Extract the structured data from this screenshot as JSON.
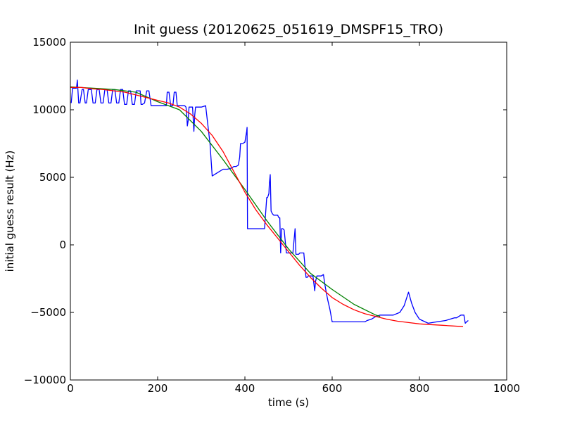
{
  "chart_data": {
    "type": "line",
    "title": "Init guess (20120625_051619_DMSPF15_TRO)",
    "xlabel": "time (s)",
    "ylabel": "initial guess result (Hz)",
    "xlim": [
      0,
      1000
    ],
    "ylim": [
      -10000,
      15000
    ],
    "x_ticks": [
      0,
      200,
      400,
      600,
      800,
      1000
    ],
    "y_ticks": [
      -10000,
      -5000,
      0,
      5000,
      10000,
      15000
    ],
    "x_tick_labels": [
      "0",
      "200",
      "400",
      "600",
      "800",
      "1000"
    ],
    "y_tick_labels": [
      "−10000",
      "−5000",
      "0",
      "5000",
      "10000",
      "15000"
    ],
    "grid": false,
    "legend": "none",
    "series": [
      {
        "color": "#0000ff",
        "x": [
          2,
          5,
          8,
          14,
          16,
          19,
          22,
          27,
          30,
          34,
          37,
          41,
          48,
          52,
          57,
          61,
          66,
          70,
          75,
          79,
          84,
          88,
          93,
          97,
          102,
          106,
          111,
          115,
          120,
          124,
          129,
          133,
          138,
          142,
          147,
          151,
          156,
          160,
          162,
          165,
          170,
          175,
          180,
          185,
          190,
          200,
          215,
          220,
          222,
          226,
          230,
          235,
          238,
          242,
          245,
          250,
          258,
          262,
          265,
          267,
          268,
          270,
          272,
          275,
          280,
          283,
          285,
          287,
          290,
          300,
          310,
          320,
          325,
          330,
          340,
          350,
          360,
          370,
          375,
          380,
          385,
          388,
          390,
          395,
          400,
          402,
          404,
          405,
          406,
          407,
          408,
          410,
          420,
          430,
          440,
          445,
          450,
          452,
          455,
          456,
          458,
          460,
          463,
          466,
          470,
          475,
          478,
          480,
          482,
          484,
          487,
          490,
          495,
          500,
          503,
          505,
          510,
          515,
          517,
          520,
          523,
          526,
          530,
          535,
          540,
          543,
          545,
          550,
          556,
          560,
          562,
          565,
          570,
          575,
          580,
          583,
          587,
          590,
          595,
          600,
          610,
          620,
          640,
          660,
          675,
          680,
          690,
          700,
          710,
          715,
          720,
          730,
          740,
          755,
          765,
          775,
          782,
          790,
          800,
          820,
          840,
          860,
          880,
          885,
          890,
          895,
          902,
          905,
          908,
          912
        ],
        "y": [
          10500,
          11600,
          11600,
          11600,
          12200,
          10500,
          10500,
          11500,
          11500,
          10500,
          10500,
          11500,
          11500,
          10500,
          10500,
          11500,
          11500,
          10500,
          10500,
          11500,
          11500,
          10500,
          10500,
          11500,
          11500,
          10500,
          10500,
          11500,
          11500,
          10400,
          10400,
          11400,
          11400,
          10400,
          10400,
          11400,
          11400,
          11400,
          10400,
          10400,
          10500,
          11400,
          11400,
          10300,
          10300,
          10300,
          10300,
          10300,
          11300,
          11300,
          10300,
          10300,
          11300,
          11300,
          10300,
          10300,
          10300,
          10300,
          10200,
          9500,
          8800,
          9200,
          10200,
          10200,
          10200,
          8400,
          9600,
          10200,
          10200,
          10200,
          10300,
          7500,
          5100,
          5200,
          5400,
          5600,
          5600,
          5700,
          5800,
          5800,
          5900,
          6500,
          7500,
          7500,
          7600,
          8000,
          8400,
          8700,
          1200,
          1200,
          1200,
          1200,
          1200,
          1200,
          1200,
          1200,
          3500,
          3500,
          3800,
          4500,
          5200,
          2500,
          2300,
          2200,
          2200,
          2200,
          2000,
          2000,
          -600,
          1200,
          1200,
          1100,
          -600,
          -600,
          -600,
          -600,
          -600,
          1200,
          -700,
          -700,
          -700,
          -600,
          -600,
          -600,
          -2400,
          -2400,
          -2300,
          -2300,
          -2300,
          -3400,
          -2700,
          -2300,
          -2300,
          -2300,
          -2200,
          -2900,
          -3600,
          -4100,
          -4800,
          -5700,
          -5700,
          -5700,
          -5700,
          -5700,
          -5700,
          -5600,
          -5500,
          -5300,
          -5200,
          -5200,
          -5200,
          -5200,
          -5200,
          -5000,
          -4500,
          -3500,
          -4300,
          -5000,
          -5500,
          -5800,
          -5700,
          -5600,
          -5400,
          -5400,
          -5300,
          -5200,
          -5200,
          -5800,
          -5700,
          -5600
        ]
      },
      {
        "color": "#008000",
        "x": [
          0,
          50,
          100,
          150,
          200,
          250,
          300,
          350,
          400,
          450,
          500,
          550,
          600,
          650,
          700,
          710
        ],
        "y": [
          11700,
          11600,
          11500,
          11300,
          10600,
          10000,
          8400,
          6300,
          4100,
          1800,
          -300,
          -2100,
          -3300,
          -4400,
          -5200,
          -5300
        ]
      },
      {
        "color": "#ff0000",
        "x": [
          0,
          25,
          50,
          75,
          100,
          125,
          150,
          175,
          200,
          225,
          250,
          275,
          300,
          325,
          350,
          375,
          400,
          425,
          450,
          475,
          500,
          525,
          550,
          575,
          600,
          625,
          650,
          675,
          700,
          725,
          750,
          775,
          800,
          825,
          850,
          875,
          900
        ],
        "y": [
          11650,
          11650,
          11550,
          11500,
          11400,
          11300,
          11100,
          10900,
          10700,
          10500,
          10200,
          9700,
          9000,
          8100,
          6900,
          5400,
          3900,
          2600,
          1500,
          500,
          -500,
          -1500,
          -2400,
          -3200,
          -3900,
          -4400,
          -4800,
          -5100,
          -5300,
          -5500,
          -5650,
          -5750,
          -5850,
          -5900,
          -5950,
          -6000,
          -6050
        ]
      }
    ]
  }
}
